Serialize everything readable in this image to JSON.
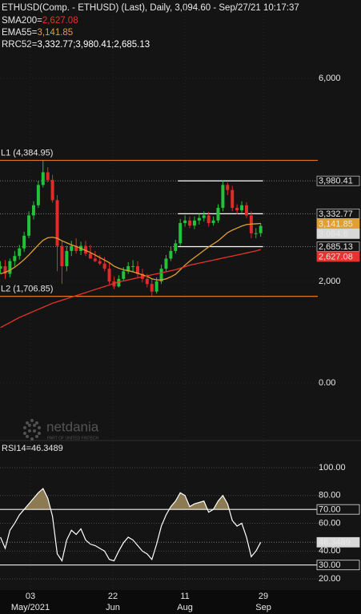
{
  "header": {
    "title": "ETHUSD(Comp. - ETHUSD) (Last),  Daily, 3,094.60 - Sep/27/21 10:17:37",
    "indicators": [
      {
        "label": "SMA200=",
        "value": "2,627.08",
        "color": "#e8322c"
      },
      {
        "label": "EMA55=",
        "value": "3,141.85",
        "color": "#e0a030"
      },
      {
        "label": "RRC52=",
        "value": "3,332.77;3,980.41;2,685.13",
        "color": "#ffffff"
      }
    ]
  },
  "watermark": {
    "brand": "netdania",
    "tagline": "PART OF UNITED FINTECH"
  },
  "chart_data": [
    {
      "type": "candlestick",
      "xlim": [
        -0.1,
        76.2
      ],
      "ylim": [
        -1118,
        7543
      ],
      "yticks": [
        {
          "value": 6000,
          "label": "6,000"
        },
        {
          "value": 2000,
          "label": "2,000"
        },
        {
          "value": 0,
          "label": "0.00"
        }
      ],
      "up_color": "#22c23a",
      "down_color": "#e02b2b",
      "open": [
        2250,
        2300,
        2150,
        2400,
        2500,
        2650,
        2900,
        3300,
        3500,
        3900,
        4150,
        4000,
        3600,
        2700,
        2300,
        2600,
        2700,
        2600,
        2700,
        2550,
        2450,
        2400,
        2350,
        2250,
        2000,
        1900,
        2050,
        2200,
        2300,
        2300,
        2150,
        2050,
        1950,
        1800,
        2000,
        2250,
        2450,
        2600,
        2750,
        3150,
        3200,
        3100,
        3200,
        3250,
        3300,
        3150,
        3200,
        3450,
        3900,
        3800,
        3450,
        3400,
        3500,
        3300,
        2950,
        2950
      ],
      "high": [
        2400,
        2420,
        2450,
        2600,
        2720,
        2980,
        3380,
        3580,
        3980,
        4380,
        4250,
        4100,
        3700,
        2800,
        2700,
        2800,
        2850,
        2780,
        2800,
        2720,
        2600,
        2520,
        2480,
        2380,
        2100,
        2120,
        2280,
        2380,
        2420,
        2400,
        2250,
        2150,
        2050,
        2080,
        2330,
        2520,
        2680,
        2820,
        3230,
        3300,
        3280,
        3280,
        3330,
        3380,
        3370,
        3280,
        3520,
        3980,
        3950,
        3880,
        3520,
        3580,
        3560,
        3380,
        3050,
        3150
      ],
      "low": [
        2150,
        2050,
        2080,
        2300,
        2430,
        2580,
        2850,
        3220,
        3450,
        3850,
        3950,
        3550,
        2200,
        1950,
        2200,
        2500,
        2550,
        2520,
        2500,
        2480,
        2380,
        2320,
        2200,
        1950,
        1850,
        1880,
        2000,
        2150,
        2200,
        2080,
        1980,
        1880,
        1720,
        1760,
        1950,
        2200,
        2400,
        2550,
        2700,
        3080,
        3050,
        3030,
        3120,
        3180,
        3080,
        3100,
        3150,
        3380,
        3700,
        3380,
        3320,
        3350,
        3250,
        2850,
        2850,
        2880
      ],
      "close": [
        2300,
        2150,
        2400,
        2500,
        2650,
        2900,
        3300,
        3500,
        3900,
        4150,
        4000,
        3600,
        2700,
        2300,
        2600,
        2700,
        2600,
        2700,
        2550,
        2450,
        2400,
        2350,
        2250,
        2000,
        1900,
        2050,
        2200,
        2300,
        2300,
        2150,
        2050,
        1950,
        1800,
        2000,
        2250,
        2450,
        2600,
        2750,
        3150,
        3200,
        3100,
        3200,
        3250,
        3300,
        3150,
        3200,
        3450,
        3900,
        3800,
        3450,
        3400,
        3500,
        3300,
        2950,
        2950,
        3094.6
      ],
      "last_tag": {
        "value": 3094.6,
        "label": "3,094.6",
        "bg": "#d8d8d8",
        "fg": "#000000"
      },
      "overlays": [
        {
          "color": "#e0a030",
          "tag": {
            "value": 3141.85,
            "label": "3,141.85",
            "bg": "#e0a030",
            "fg": "#000000"
          },
          "values": [
            2150,
            2180,
            2220,
            2280,
            2350,
            2430,
            2520,
            2620,
            2720,
            2810,
            2860,
            2870,
            2850,
            2800,
            2760,
            2720,
            2690,
            2650,
            2610,
            2570,
            2520,
            2470,
            2420,
            2370,
            2300,
            2260,
            2230,
            2210,
            2190,
            2160,
            2130,
            2100,
            2050,
            2030,
            2030,
            2050,
            2090,
            2140,
            2230,
            2320,
            2400,
            2470,
            2540,
            2610,
            2680,
            2740,
            2800,
            2880,
            2960,
            3010,
            3050,
            3090,
            3120,
            3130,
            3135,
            3141.85
          ]
        },
        {
          "color": "#e8322c",
          "tag": {
            "value": 2627.08,
            "label": "2,627.08",
            "bg": "#e8322c",
            "fg": "#ffffff"
          },
          "values": [
            1090,
            1140,
            1190,
            1240,
            1290,
            1330,
            1370,
            1410,
            1450,
            1490,
            1530,
            1570,
            1600,
            1630,
            1660,
            1690,
            1720,
            1750,
            1780,
            1810,
            1840,
            1870,
            1900,
            1930,
            1960,
            1990,
            2010,
            2030,
            2050,
            2070,
            2090,
            2110,
            2130,
            2150,
            2170,
            2190,
            2210,
            2230,
            2260,
            2290,
            2320,
            2340,
            2360,
            2380,
            2400,
            2420,
            2440,
            2460,
            2480,
            2500,
            2520,
            2540,
            2560,
            2580,
            2600,
            2627.08
          ]
        }
      ],
      "levels": [
        {
          "name": "L1 (4,384.95)",
          "value": 4384.95,
          "color": "#e07a20"
        },
        {
          "name": "L2 (1,706.85)",
          "value": 1706.85,
          "color": "#e07a20"
        }
      ],
      "channel": {
        "start": 37.5,
        "end": 55.5,
        "color": "#ffffff",
        "lines": [
          {
            "value": 3980.41,
            "label": "3,980.41"
          },
          {
            "value": 3332.77,
            "label": "3,332.77"
          },
          {
            "value": 2685.13,
            "label": "2,685.13"
          }
        ]
      }
    },
    {
      "type": "line",
      "name": "RSI14=46.3489",
      "ylim": [
        12,
        119
      ],
      "yticks": [
        {
          "value": 100,
          "label": "100.00"
        },
        {
          "value": 80,
          "label": "80.00"
        },
        {
          "value": 60,
          "label": "60.00"
        },
        {
          "value": 40,
          "label": "40.00"
        },
        {
          "value": 20,
          "label": "20.00"
        }
      ],
      "bands": [
        {
          "value": 70,
          "label": "70.00"
        },
        {
          "value": 30,
          "label": "30.00"
        }
      ],
      "color": "#ffffff",
      "overbought_fill": "#8c7a52",
      "values": [
        50,
        42,
        55,
        60,
        66,
        70,
        74,
        78,
        82,
        85,
        78,
        65,
        38,
        33,
        48,
        55,
        52,
        56,
        48,
        45,
        44,
        42,
        40,
        34,
        33,
        40,
        46,
        50,
        48,
        44,
        40,
        38,
        34,
        45,
        58,
        66,
        72,
        76,
        82,
        80,
        72,
        74,
        75,
        76,
        68,
        70,
        76,
        80,
        74,
        62,
        58,
        60,
        50,
        36,
        40,
        46.3489
      ],
      "tag": {
        "value": 46.3489,
        "label": "46.3489"
      },
      "xticks": [
        {
          "value": 6.33,
          "label": "03"
        },
        {
          "value": 23.76,
          "label": "22"
        },
        {
          "value": 38.99,
          "label": "11"
        },
        {
          "value": 55.57,
          "label": "29"
        }
      ],
      "xtick_months": [
        "May/2021",
        "Jun",
        "Aug",
        "Sep"
      ]
    }
  ]
}
